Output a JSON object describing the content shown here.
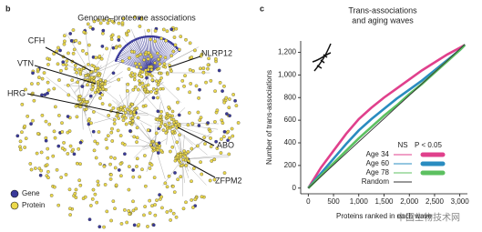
{
  "panel_b": {
    "label": "b",
    "title": "Genome–proteome associations",
    "node_labels": [
      "CFH",
      "VTN",
      "HRG",
      "NLRP12",
      "ABO",
      "ZFPM2"
    ],
    "legend": [
      "Gene",
      "Protein"
    ]
  },
  "chart_data": {
    "type": "line",
    "panel_label": "c",
    "title": [
      "Trans-associations",
      "and aging waves"
    ],
    "x_label": "Proteins ranked in each wave",
    "y_label": "Number of trans-associations",
    "x": [
      0,
      250,
      500,
      750,
      1000,
      1250,
      1500,
      1750,
      2000,
      2250,
      2500,
      2750,
      3000,
      3100
    ],
    "series": [
      {
        "name": "Age 34",
        "color": "#e0408c",
        "significant": true,
        "values": [
          0,
          180,
          330,
          480,
          610,
          710,
          800,
          880,
          960,
          1040,
          1110,
          1180,
          1240,
          1265
        ]
      },
      {
        "name": "Age 60",
        "color": "#2a8cc0",
        "significant": true,
        "values": [
          0,
          130,
          260,
          390,
          510,
          610,
          700,
          790,
          870,
          950,
          1040,
          1130,
          1220,
          1265
        ]
      },
      {
        "name": "Age 78",
        "color": "#5cc060",
        "significant": true,
        "values": [
          0,
          110,
          220,
          330,
          440,
          540,
          640,
          730,
          830,
          920,
          1020,
          1120,
          1220,
          1265
        ]
      },
      {
        "name": "Random",
        "color": "#333333",
        "significant": false,
        "values": [
          0,
          102,
          205,
          307,
          410,
          512,
          614,
          717,
          819,
          922,
          1024,
          1126,
          1229,
          1270
        ]
      }
    ],
    "legend_header": [
      "NS",
      "P < 0.05"
    ],
    "xlim": [
      -150,
      3150
    ],
    "ylim": [
      -50,
      1300
    ],
    "xticks": [
      0,
      500,
      {
        "value": 1000,
        "label": "1,000"
      },
      {
        "value": 1500,
        "label": "1,500"
      },
      {
        "value": 2000,
        "label": "2,000"
      },
      {
        "value": 2500,
        "label": "2,500"
      },
      {
        "value": 3000,
        "label": "3,000"
      }
    ],
    "yticks": [
      0,
      200,
      400,
      600,
      800,
      {
        "value": 1000,
        "label": "1,000"
      },
      {
        "value": 1200,
        "label": "1,200"
      }
    ]
  },
  "watermark": "中国生物技术网"
}
